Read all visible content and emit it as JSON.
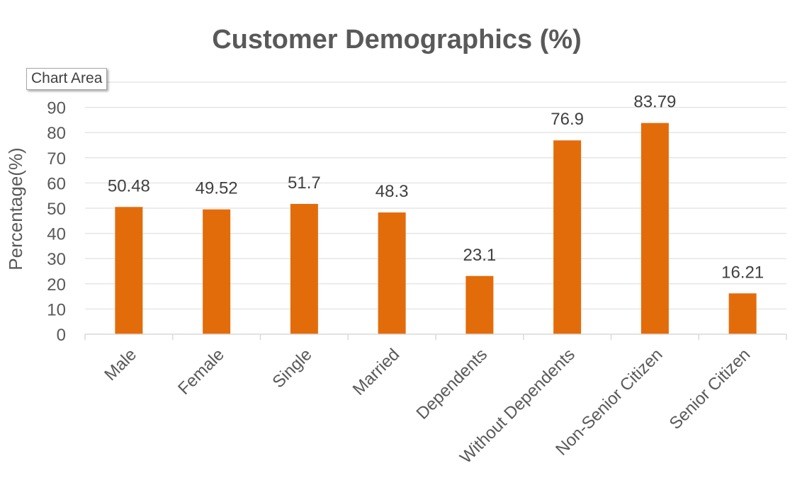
{
  "tooltip": {
    "text": "Chart Area"
  },
  "colors": {
    "bar": "#e36c0a",
    "text": "#595959"
  },
  "chart_data": {
    "type": "bar",
    "title": "Customer Demographics (%)",
    "xlabel": "",
    "ylabel": "Percentage(%)",
    "ylim": [
      0,
      100
    ],
    "yticks": [
      0,
      10,
      20,
      30,
      40,
      50,
      60,
      70,
      80,
      90
    ],
    "grid": true,
    "legend": "none",
    "categories": [
      "Male",
      "Female",
      "Single",
      "Married",
      "Dependents",
      "Without Dependents",
      "Non-Senior Citizen",
      "Senior Citizen"
    ],
    "values": [
      50.48,
      49.52,
      51.7,
      48.3,
      23.1,
      76.9,
      83.79,
      16.21
    ],
    "data_labels": [
      "50.48",
      "49.52",
      "51.7",
      "48.3",
      "23.1",
      "76.9",
      "83.79",
      "16.21"
    ]
  }
}
